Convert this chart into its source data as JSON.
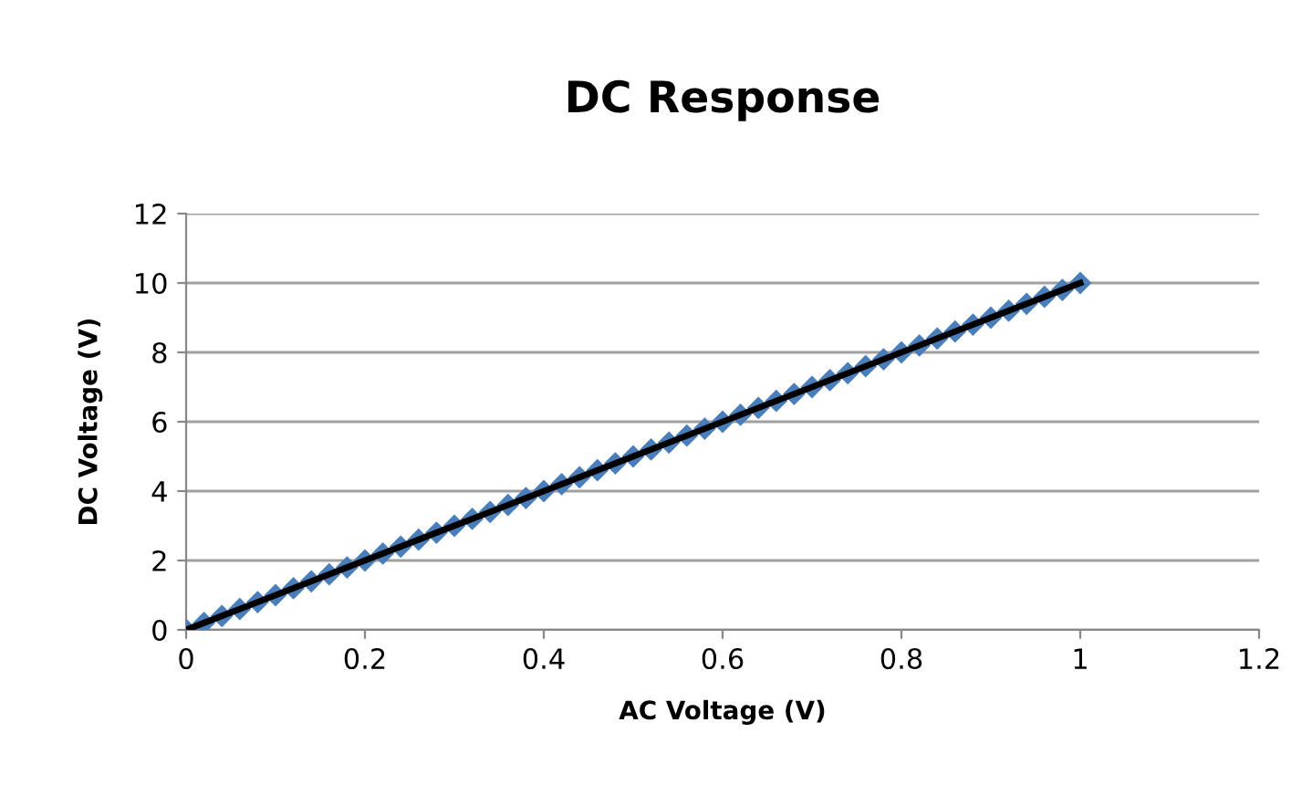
{
  "chart_data": {
    "type": "scatter",
    "title": "DC Response",
    "xlabel": "AC Voltage (V)",
    "ylabel": "DC Voltage (V)",
    "series": [
      {
        "color": "#4a7ebb",
        "marker": "diamond",
        "x": [
          0,
          0.02,
          0.04,
          0.06,
          0.08,
          0.1,
          0.12,
          0.14,
          0.16,
          0.18,
          0.2,
          0.22,
          0.24,
          0.26,
          0.28,
          0.3,
          0.32,
          0.34,
          0.36,
          0.38,
          0.4,
          0.42,
          0.44,
          0.46,
          0.48,
          0.5,
          0.52,
          0.54,
          0.56,
          0.58,
          0.6,
          0.62,
          0.64,
          0.66,
          0.68,
          0.7,
          0.72,
          0.74,
          0.76,
          0.78,
          0.8,
          0.82,
          0.84,
          0.86,
          0.88,
          0.9,
          0.92,
          0.94,
          0.96,
          0.98,
          1.0
        ],
        "values": [
          0,
          0.2,
          0.4,
          0.6,
          0.8,
          1.0,
          1.2,
          1.4,
          1.6,
          1.8,
          2.0,
          2.2,
          2.4,
          2.6,
          2.8,
          3.0,
          3.2,
          3.4,
          3.6,
          3.8,
          4.0,
          4.2,
          4.4,
          4.6,
          4.8,
          5.0,
          5.2,
          5.4,
          5.6,
          5.8,
          6.0,
          6.2,
          6.4,
          6.6,
          6.8,
          7.0,
          7.2,
          7.4,
          7.6,
          7.8,
          8.0,
          8.2,
          8.4,
          8.6,
          8.8,
          9.0,
          9.2,
          9.4,
          9.6,
          9.8,
          10.0
        ]
      },
      {
        "type": "line",
        "color": "#000000",
        "line_style": "solid",
        "x": [
          0,
          1.0
        ],
        "values": [
          0,
          10.0
        ]
      }
    ],
    "xlim": [
      0,
      1.2
    ],
    "xticks": [
      0,
      0.2,
      0.4,
      0.6,
      0.8,
      1,
      1.2
    ],
    "ylim": [
      0,
      12
    ],
    "yticks": [
      0,
      2,
      4,
      6,
      8,
      10,
      12
    ],
    "grid": "y"
  }
}
